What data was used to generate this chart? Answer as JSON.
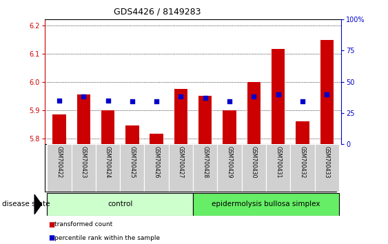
{
  "title": "GDS4426 / 8149283",
  "samples": [
    "GSM700422",
    "GSM700423",
    "GSM700424",
    "GSM700425",
    "GSM700426",
    "GSM700427",
    "GSM700428",
    "GSM700429",
    "GSM700430",
    "GSM700431",
    "GSM700432",
    "GSM700433"
  ],
  "red_values": [
    5.885,
    5.955,
    5.9,
    5.845,
    5.815,
    5.975,
    5.95,
    5.9,
    6.0,
    6.115,
    5.86,
    6.148
  ],
  "blue_values": [
    35,
    38,
    35,
    34,
    34,
    38,
    37,
    34,
    38,
    40,
    34,
    40
  ],
  "ylim_left": [
    5.78,
    6.22
  ],
  "ylim_right": [
    0,
    100
  ],
  "yticks_left": [
    5.8,
    5.9,
    6.0,
    6.1,
    6.2
  ],
  "yticks_right": [
    0,
    25,
    50,
    75,
    100
  ],
  "bar_base": 5.78,
  "bar_color": "#cc0000",
  "blue_color": "#0000cc",
  "n_control": 6,
  "n_disease": 6,
  "control_label": "control",
  "disease_label": "epidermolysis bullosa simplex",
  "disease_state_label": "disease state",
  "legend_red": "transformed count",
  "legend_blue": "percentile rank within the sample",
  "control_color": "#ccffcc",
  "disease_color": "#66ee66",
  "sample_box_color": "#d0d0d0",
  "bar_width": 0.55,
  "title_fontsize": 9,
  "tick_fontsize": 7,
  "sample_fontsize": 5.5,
  "label_fontsize": 7.5,
  "legend_fontsize": 6.5,
  "disease_state_fontsize": 7.5
}
